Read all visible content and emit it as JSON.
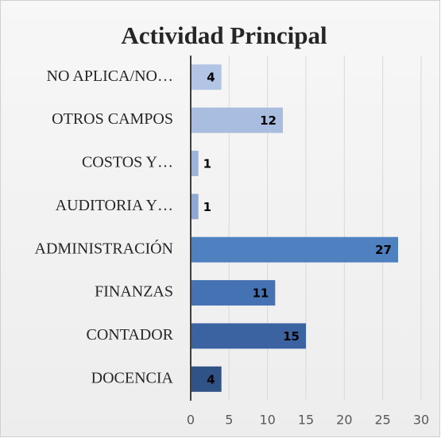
{
  "chart_data": {
    "type": "barh",
    "title": "Actividad Principal",
    "categories": [
      "NO APLICA/NO…",
      "OTROS CAMPOS",
      "COSTOS Y…",
      "AUDITORIA Y…",
      "ADMINISTRACIÓN",
      "FINANZAS",
      "CONTADOR",
      "DOCENCIA"
    ],
    "values": [
      4,
      12,
      1,
      1,
      27,
      11,
      15,
      4
    ],
    "colors": [
      "#b3c5e4",
      "#a9bde0",
      "#9cb3dc",
      "#8ea8d6",
      "#4f80bf",
      "#4572b3",
      "#3b63a1",
      "#2f5386"
    ],
    "xlim": [
      0,
      30
    ],
    "xticks": [
      0,
      5,
      10,
      15,
      20,
      25,
      30
    ],
    "grid": true
  }
}
